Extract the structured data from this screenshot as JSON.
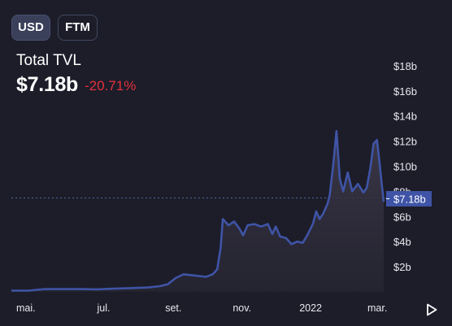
{
  "currency_toggle": {
    "options": [
      "USD",
      "FTM"
    ],
    "selected": "USD"
  },
  "header": {
    "title": "Total TVL",
    "value": "$7.18b",
    "change": "-20.71%"
  },
  "current_value_label": "$7.18b",
  "colors": {
    "background": "#1c1d29",
    "line": "#3f54a6",
    "area_top": "#3e3a4a",
    "negative_change": "#e5303d",
    "value_tag": "#3f54a6"
  },
  "chart_data": {
    "type": "area",
    "title": "Total TVL",
    "xlabel": "",
    "ylabel": "",
    "x_tick_labels": [
      "mai.",
      "jul.",
      "set.",
      "nov.",
      "2022",
      "mar."
    ],
    "y_tick_labels": [
      "$2b",
      "$4b",
      "$6b",
      "$8b",
      "$10b",
      "$12b",
      "$14b",
      "$16b",
      "$18b"
    ],
    "ylim": [
      0,
      18
    ],
    "y_unit": "billion USD",
    "current_value": 7.18,
    "grid": false,
    "series": [
      {
        "points": [
          [
            "2021-04-10",
            0.1
          ],
          [
            "2021-04-25",
            0.1
          ],
          [
            "2021-05-10",
            0.22
          ],
          [
            "2021-05-25",
            0.22
          ],
          [
            "2021-06-10",
            0.22
          ],
          [
            "2021-06-25",
            0.2
          ],
          [
            "2021-07-10",
            0.25
          ],
          [
            "2021-07-25",
            0.3
          ],
          [
            "2021-08-10",
            0.35
          ],
          [
            "2021-08-20",
            0.45
          ],
          [
            "2021-08-27",
            0.6
          ],
          [
            "2021-09-03",
            1.1
          ],
          [
            "2021-09-10",
            1.4
          ],
          [
            "2021-09-20",
            1.3
          ],
          [
            "2021-09-30",
            1.2
          ],
          [
            "2021-10-06",
            1.4
          ],
          [
            "2021-10-10",
            1.8
          ],
          [
            "2021-10-13",
            3.5
          ],
          [
            "2021-10-15",
            5.8
          ],
          [
            "2021-10-20",
            5.3
          ],
          [
            "2021-10-25",
            5.6
          ],
          [
            "2021-10-30",
            5.0
          ],
          [
            "2021-11-02",
            4.5
          ],
          [
            "2021-11-06",
            5.3
          ],
          [
            "2021-11-12",
            5.4
          ],
          [
            "2021-11-18",
            5.2
          ],
          [
            "2021-11-24",
            5.4
          ],
          [
            "2021-11-28",
            4.6
          ],
          [
            "2021-12-01",
            5.2
          ],
          [
            "2021-12-05",
            4.4
          ],
          [
            "2021-12-10",
            4.3
          ],
          [
            "2021-12-15",
            3.8
          ],
          [
            "2021-12-20",
            4.0
          ],
          [
            "2021-12-25",
            3.9
          ],
          [
            "2021-12-29",
            4.5
          ],
          [
            "2022-01-03",
            5.4
          ],
          [
            "2022-01-06",
            6.4
          ],
          [
            "2022-01-09",
            5.8
          ],
          [
            "2022-01-12",
            6.2
          ],
          [
            "2022-01-16",
            7.0
          ],
          [
            "2022-01-18",
            7.7
          ],
          [
            "2022-01-21",
            10.0
          ],
          [
            "2022-01-24",
            12.8
          ],
          [
            "2022-01-27",
            9.0
          ],
          [
            "2022-01-30",
            8.0
          ],
          [
            "2022-02-03",
            9.5
          ],
          [
            "2022-02-07",
            8.0
          ],
          [
            "2022-02-12",
            8.6
          ],
          [
            "2022-02-17",
            7.9
          ],
          [
            "2022-02-20",
            8.3
          ],
          [
            "2022-02-23",
            9.8
          ],
          [
            "2022-02-26",
            11.8
          ],
          [
            "2022-03-01",
            12.1
          ],
          [
            "2022-03-03",
            10.5
          ],
          [
            "2022-03-05",
            8.8
          ],
          [
            "2022-03-07",
            7.18
          ]
        ]
      }
    ]
  }
}
